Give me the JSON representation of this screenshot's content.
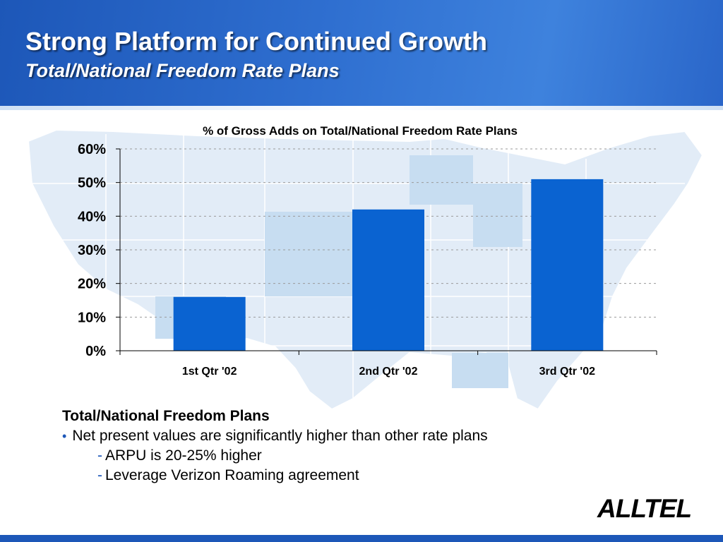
{
  "header": {
    "title": "Strong Platform for Continued Growth",
    "subtitle": "Total/National Freedom Rate Plans"
  },
  "chart_data": {
    "type": "bar",
    "title": "% of Gross Adds on Total/National Freedom Rate Plans",
    "categories": [
      "1st Qtr '02",
      "2nd Qtr '02",
      "3rd Qtr '02"
    ],
    "values": [
      16,
      42,
      51
    ],
    "ylim": [
      0,
      60
    ],
    "yticks": [
      "0%",
      "10%",
      "20%",
      "30%",
      "40%",
      "50%",
      "60%"
    ],
    "xlabel": "",
    "ylabel": "",
    "grid": true,
    "bar_color": "#0a63d1"
  },
  "bullets": {
    "heading": "Total/National Freedom Plans",
    "items": [
      {
        "marker": "•",
        "text": "Net present values are significantly higher than other rate plans"
      }
    ],
    "subitems": [
      {
        "marker": "-",
        "text": "ARPU is 20-25% higher"
      },
      {
        "marker": "-",
        "text": "Leverage Verizon Roaming agreement"
      }
    ]
  },
  "logo": {
    "text": "ALLTEL"
  }
}
